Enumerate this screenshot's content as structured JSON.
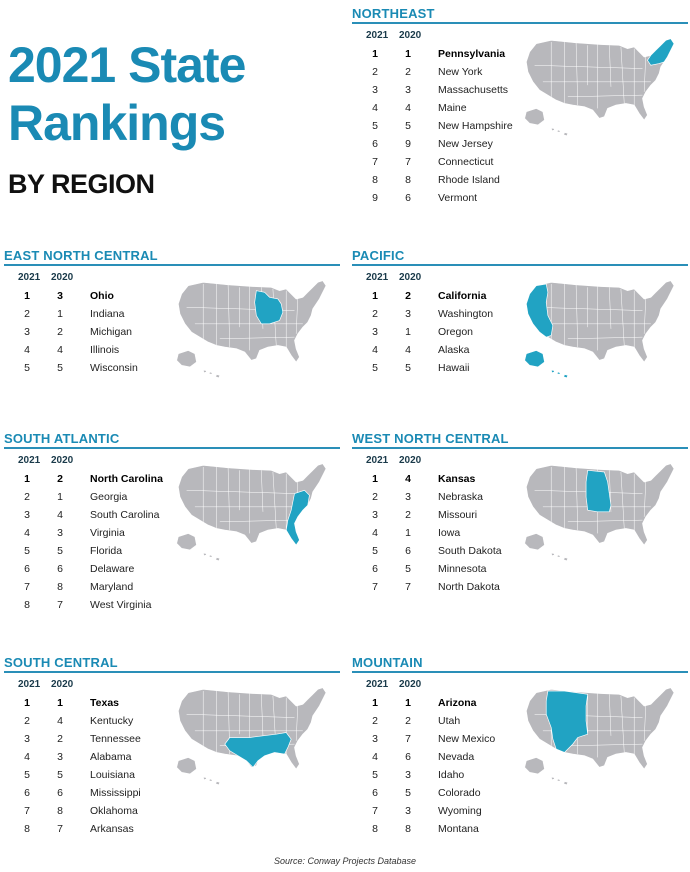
{
  "title": {
    "line1": "2021 State",
    "line2": "Rankings",
    "line3": "BY REGION"
  },
  "colors": {
    "accent": "#1a8ab4",
    "map_base": "#b8b8bc",
    "map_highlight": "#21a3c3"
  },
  "column_headers": {
    "year_current": "2021",
    "year_prior": "2020"
  },
  "regions": [
    {
      "name": "NORTHEAST",
      "rows": [
        [
          "1",
          "1",
          "Pennsylvania"
        ],
        [
          "2",
          "2",
          "New York"
        ],
        [
          "3",
          "3",
          "Massachusetts"
        ],
        [
          "4",
          "4",
          "Maine"
        ],
        [
          "5",
          "5",
          "New Hampshire"
        ],
        [
          "6",
          "9",
          "New Jersey"
        ],
        [
          "7",
          "7",
          "Connecticut"
        ],
        [
          "8",
          "8",
          "Rhode Island"
        ],
        [
          "9",
          "6",
          "Vermont"
        ]
      ],
      "highlight_icon": "northeast-highlight"
    },
    {
      "name": "EAST NORTH CENTRAL",
      "rows": [
        [
          "1",
          "3",
          "Ohio"
        ],
        [
          "2",
          "1",
          "Indiana"
        ],
        [
          "3",
          "2",
          "Michigan"
        ],
        [
          "4",
          "4",
          "Illinois"
        ],
        [
          "5",
          "5",
          "Wisconsin"
        ]
      ],
      "highlight_icon": "east-north-central-highlight"
    },
    {
      "name": "PACIFIC",
      "rows": [
        [
          "1",
          "2",
          "California"
        ],
        [
          "2",
          "3",
          "Washington"
        ],
        [
          "3",
          "1",
          "Oregon"
        ],
        [
          "4",
          "4",
          "Alaska"
        ],
        [
          "5",
          "5",
          "Hawaii"
        ]
      ],
      "highlight_icon": "pacific-highlight"
    },
    {
      "name": "SOUTH ATLANTIC",
      "rows": [
        [
          "1",
          "2",
          "North Carolina"
        ],
        [
          "2",
          "1",
          "Georgia"
        ],
        [
          "3",
          "4",
          "South Carolina"
        ],
        [
          "4",
          "3",
          "Virginia"
        ],
        [
          "5",
          "5",
          "Florida"
        ],
        [
          "6",
          "6",
          "Delaware"
        ],
        [
          "7",
          "8",
          "Maryland"
        ],
        [
          "8",
          "7",
          "West Virginia"
        ]
      ],
      "highlight_icon": "south-atlantic-highlight"
    },
    {
      "name": "WEST NORTH CENTRAL",
      "rows": [
        [
          "1",
          "4",
          "Kansas"
        ],
        [
          "2",
          "3",
          "Nebraska"
        ],
        [
          "3",
          "2",
          "Missouri"
        ],
        [
          "4",
          "1",
          "Iowa"
        ],
        [
          "5",
          "6",
          "South Dakota"
        ],
        [
          "6",
          "5",
          "Minnesota"
        ],
        [
          "7",
          "7",
          "North Dakota"
        ]
      ],
      "highlight_icon": "west-north-central-highlight"
    },
    {
      "name": "SOUTH CENTRAL",
      "rows": [
        [
          "1",
          "1",
          "Texas"
        ],
        [
          "2",
          "4",
          "Kentucky"
        ],
        [
          "3",
          "2",
          "Tennessee"
        ],
        [
          "4",
          "3",
          "Alabama"
        ],
        [
          "5",
          "5",
          "Louisiana"
        ],
        [
          "6",
          "6",
          "Mississippi"
        ],
        [
          "7",
          "8",
          "Oklahoma"
        ],
        [
          "8",
          "7",
          "Arkansas"
        ]
      ],
      "highlight_icon": "south-central-highlight"
    },
    {
      "name": "MOUNTAIN",
      "rows": [
        [
          "1",
          "1",
          "Arizona"
        ],
        [
          "2",
          "2",
          "Utah"
        ],
        [
          "3",
          "7",
          "New Mexico"
        ],
        [
          "4",
          "6",
          "Nevada"
        ],
        [
          "5",
          "3",
          "Idaho"
        ],
        [
          "6",
          "5",
          "Colorado"
        ],
        [
          "7",
          "3",
          "Wyoming"
        ],
        [
          "8",
          "8",
          "Montana"
        ]
      ],
      "highlight_icon": "mountain-highlight"
    }
  ],
  "source": "Source: Conway Projects Database"
}
